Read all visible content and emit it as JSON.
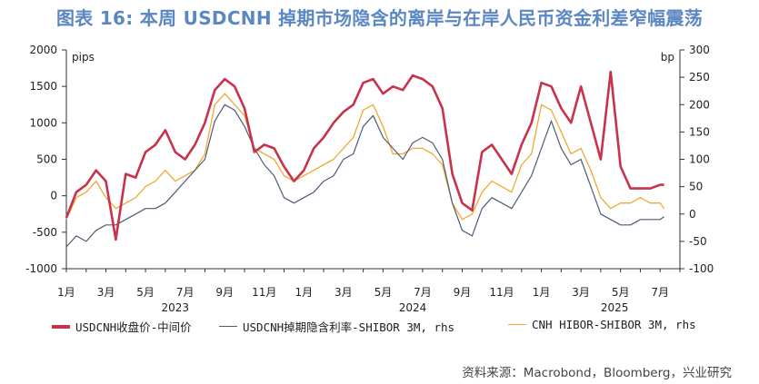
{
  "title": "图表 16: 本周 USDCNH 掉期市场隐含的离岸与在岸人民币资金利差窄幅震荡",
  "source": "资料来源：Macrobond，Bloomberg，兴业研究",
  "colors": {
    "series1": "#c8324a",
    "series2": "#4d5b75",
    "series3": "#f0a930",
    "title": "#5b87c2",
    "axis": "#333333"
  },
  "chart_data": {
    "type": "line",
    "left_axis": {
      "label": "pips",
      "ticks": [
        2000,
        1500,
        1000,
        500,
        0,
        -500,
        -1000
      ],
      "ylim": [
        -1000,
        2000
      ]
    },
    "right_axis": {
      "label": "bp",
      "ticks": [
        300,
        250,
        200,
        150,
        100,
        50,
        0,
        -50,
        -100
      ],
      "ylim": [
        -100,
        300
      ]
    },
    "x_tick_labels": [
      "1月",
      "3月",
      "5月",
      "7月",
      "9月",
      "11月",
      "1月",
      "3月",
      "5月",
      "7月",
      "9月",
      "11月",
      "1月",
      "3月",
      "5月",
      "7月"
    ],
    "x_tick_months": [
      0,
      2,
      4,
      6,
      8,
      10,
      12,
      14,
      16,
      18,
      20,
      22,
      24,
      26,
      28,
      30
    ],
    "x_year_labels": [
      {
        "label": "2023",
        "month": 5.5
      },
      {
        "label": "2024",
        "month": 17.5
      },
      {
        "label": "2025",
        "month": 27.7
      }
    ],
    "xlim_months": [
      0,
      31
    ],
    "series": [
      {
        "name": "USDCNH收盘价-中间价",
        "axis": "left",
        "x_months": [
          0,
          0.5,
          1,
          1.5,
          2,
          2.5,
          3,
          3.5,
          4,
          4.5,
          5,
          5.5,
          6,
          6.5,
          7,
          7.5,
          8,
          8.5,
          9,
          9.5,
          10,
          10.5,
          11,
          11.5,
          12,
          12.5,
          13,
          13.5,
          14,
          14.5,
          15,
          15.5,
          16,
          16.5,
          17,
          17.5,
          18,
          18.5,
          19,
          19.5,
          20,
          20.5,
          21,
          21.5,
          22,
          22.5,
          23,
          23.5,
          24,
          24.5,
          25,
          25.5,
          26,
          26.5,
          27,
          27.5,
          28,
          28.5,
          29,
          29.5,
          30,
          30.2
        ],
        "values": [
          -300,
          50,
          150,
          350,
          200,
          -600,
          300,
          250,
          600,
          700,
          900,
          600,
          500,
          700,
          1000,
          1450,
          1600,
          1500,
          1200,
          600,
          700,
          650,
          400,
          200,
          350,
          650,
          800,
          1000,
          1150,
          1250,
          1550,
          1600,
          1400,
          1500,
          1450,
          1650,
          1600,
          1500,
          1200,
          300,
          -100,
          -200,
          600,
          700,
          500,
          300,
          700,
          1000,
          1550,
          1500,
          1200,
          1000,
          1500,
          1000,
          500,
          1700,
          400,
          100,
          100,
          100,
          150,
          150
        ]
      },
      {
        "name": "USDCNH掉期隐含利率-SHIBOR 3M, rhs",
        "axis": "right",
        "x_months": [
          0,
          0.5,
          1,
          1.5,
          2,
          2.5,
          3,
          3.5,
          4,
          4.5,
          5,
          5.5,
          6,
          6.5,
          7,
          7.5,
          8,
          8.5,
          9,
          9.5,
          10,
          10.5,
          11,
          11.5,
          12,
          12.5,
          13,
          13.5,
          14,
          14.5,
          15,
          15.5,
          16,
          16.5,
          17,
          17.5,
          18,
          18.5,
          19,
          19.5,
          20,
          20.5,
          21,
          21.5,
          22,
          22.5,
          23,
          23.5,
          24,
          24.5,
          25,
          25.5,
          26,
          26.5,
          27,
          27.5,
          28,
          28.5,
          29,
          29.5,
          30,
          30.2
        ],
        "values": [
          -60,
          -40,
          -50,
          -30,
          -20,
          -20,
          -10,
          0,
          10,
          10,
          20,
          40,
          60,
          80,
          100,
          170,
          200,
          190,
          160,
          120,
          90,
          70,
          30,
          20,
          30,
          40,
          60,
          70,
          100,
          110,
          160,
          180,
          140,
          120,
          100,
          130,
          140,
          130,
          100,
          20,
          -30,
          -40,
          10,
          30,
          20,
          10,
          40,
          70,
          120,
          170,
          120,
          90,
          100,
          50,
          0,
          -10,
          -20,
          -20,
          -10,
          -10,
          -10,
          -5
        ]
      },
      {
        "name": "CNH HIBOR-SHIBOR 3M, rhs",
        "axis": "right",
        "x_months": [
          0,
          0.5,
          1,
          1.5,
          2,
          2.5,
          3,
          3.5,
          4,
          4.5,
          5,
          5.5,
          6,
          6.5,
          7,
          7.5,
          8,
          8.5,
          9,
          9.5,
          10,
          10.5,
          11,
          11.5,
          12,
          12.5,
          13,
          13.5,
          14,
          14.5,
          15,
          15.5,
          16,
          16.5,
          17,
          17.5,
          18,
          18.5,
          19,
          19.5,
          20,
          20.5,
          21,
          21.5,
          22,
          22.5,
          23,
          23.5,
          24,
          24.5,
          25,
          25.5,
          26,
          26.5,
          27,
          27.5,
          28,
          28.5,
          29,
          29.5,
          30,
          30.2
        ],
        "values": [
          -10,
          30,
          40,
          60,
          30,
          10,
          20,
          30,
          50,
          60,
          80,
          60,
          70,
          80,
          110,
          200,
          220,
          200,
          180,
          120,
          110,
          100,
          70,
          60,
          70,
          80,
          90,
          100,
          120,
          140,
          190,
          200,
          160,
          110,
          110,
          120,
          120,
          110,
          90,
          20,
          -10,
          0,
          40,
          60,
          50,
          40,
          90,
          110,
          200,
          190,
          150,
          110,
          120,
          80,
          30,
          10,
          20,
          20,
          30,
          20,
          20,
          10
        ]
      }
    ]
  }
}
